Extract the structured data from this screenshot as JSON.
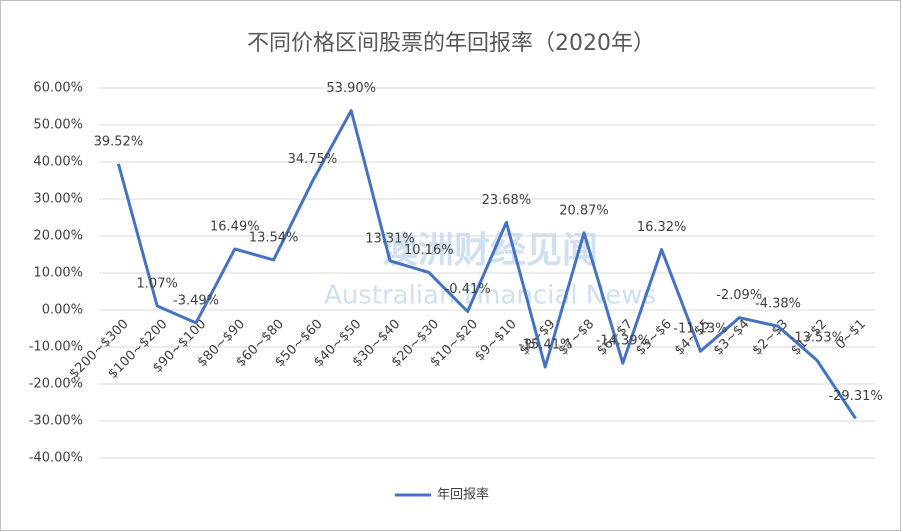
{
  "chart_data": {
    "type": "line",
    "title": "不同价格区间股票的年回报率（2020年）",
    "watermark": [
      "澳洲财经见闻",
      "Australian Financial News"
    ],
    "categories": [
      "$200~$300",
      "$100~$200",
      "$90~$100",
      "$80~$90",
      "$60~$80",
      "$50~$60",
      "$40~$50",
      "$30~$40",
      "$20~$30",
      "$10~$20",
      "$9~$10",
      "$8~$9",
      "$7~$8",
      "$6~$7",
      "$5~$6",
      "$4~$5",
      "$3~$4",
      "$2~$3",
      "$1~$2",
      "0~$1"
    ],
    "series": [
      {
        "name": "年回报率",
        "color": "#4472c4",
        "values": [
          39.52,
          1.07,
          -3.49,
          16.49,
          13.54,
          34.75,
          53.9,
          13.31,
          10.16,
          -0.41,
          23.68,
          -15.41,
          20.87,
          -14.39,
          16.32,
          -11.13,
          -2.09,
          -4.38,
          -13.53,
          -29.31
        ],
        "value_labels": [
          "39.52%",
          "1.07%",
          "-3.49%",
          "16.49%",
          "13.54%",
          "34.75%",
          "53.90%",
          "13.31%",
          "10.16%",
          "-0.41%",
          "23.68%",
          "-15.41%",
          "20.87%",
          "-14.39%",
          "16.32%",
          "-11.13%",
          "-2.09%",
          "-4.38%",
          "-13.53%",
          "-29.31%"
        ]
      }
    ],
    "ylim": [
      -40,
      60
    ],
    "yticks": [
      {
        "value": -40,
        "label": "-40.00%"
      },
      {
        "value": -30,
        "label": "-30.00%"
      },
      {
        "value": -20,
        "label": "-20.00%"
      },
      {
        "value": -10,
        "label": "-10.00%"
      },
      {
        "value": 0,
        "label": "0.00%"
      },
      {
        "value": 10,
        "label": "10.00%"
      },
      {
        "value": 20,
        "label": "20.00%"
      },
      {
        "value": 30,
        "label": "30.00%"
      },
      {
        "value": 40,
        "label": "40.00%"
      },
      {
        "value": 50,
        "label": "50.00%"
      },
      {
        "value": 60,
        "label": "60.00%"
      }
    ],
    "grid": true
  }
}
